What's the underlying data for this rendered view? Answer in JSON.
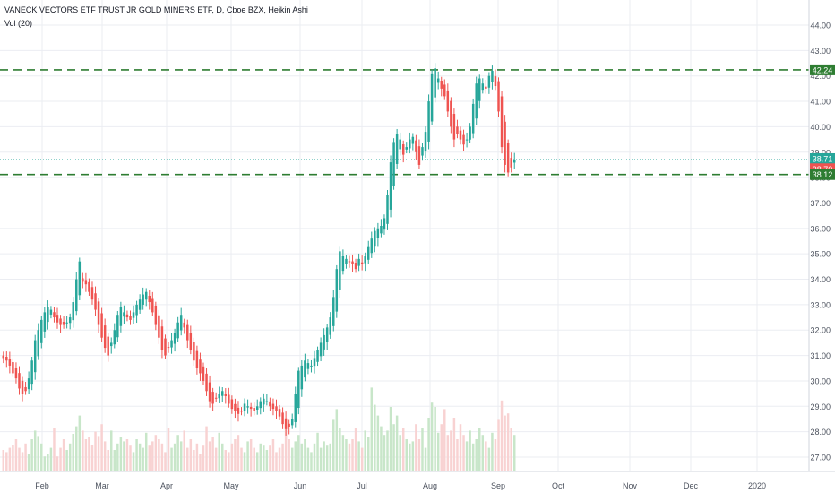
{
  "header": {
    "title": "VANECK VECTORS ETF TRUST JR GOLD MINERS ETF, D, Cboe BZX, Heikin Ashi",
    "volume_label": "Vol (20)"
  },
  "colors": {
    "up": "#26a69a",
    "down": "#ef5350",
    "vol_up": "#c8e6c9",
    "vol_down": "#f8d2d2",
    "level_line": "#2e7d32",
    "last_price_line": "#26a69a",
    "grid": "#ebedf2",
    "axis_text": "#4c525e"
  },
  "chart_data": {
    "type": "candlestick",
    "chart_style": "Heikin Ashi",
    "y_axis": {
      "position": "right",
      "ylim": [
        26.5,
        44.5
      ],
      "ticks": [
        "27.00",
        "28.00",
        "29.00",
        "30.00",
        "31.00",
        "32.00",
        "33.00",
        "34.00",
        "35.00",
        "36.00",
        "37.00",
        "38.00",
        "39.00",
        "40.00",
        "41.00",
        "42.00",
        "43.00",
        "44.00"
      ]
    },
    "x_axis": {
      "ticks": [
        "Feb",
        "Mar",
        "Apr",
        "May",
        "Jun",
        "Jul",
        "Aug",
        "Sep",
        "Oct",
        "Nov",
        "Dec",
        "2020"
      ]
    },
    "price_labels": [
      {
        "value": 42.24,
        "text": "42.24",
        "kind": "level"
      },
      {
        "value": 38.71,
        "text": "38.71",
        "kind": "last-up"
      },
      {
        "value": 38.7,
        "text": "38.70",
        "kind": "last-down"
      },
      {
        "value": 38.12,
        "text": "38.12",
        "kind": "level"
      }
    ],
    "horizontal_levels": [
      42.24,
      38.12
    ],
    "last_price": 38.71,
    "grid": true,
    "candles_close": [
      30.9,
      30.8,
      30.6,
      30.3,
      30.1,
      29.7,
      29.5,
      29.6,
      30.1,
      30.8,
      31.6,
      32.0,
      32.4,
      32.7,
      32.9,
      32.8,
      32.5,
      32.3,
      32.2,
      32.2,
      32.3,
      32.5,
      33.1,
      34.0,
      34.7,
      33.9,
      33.8,
      33.5,
      33.2,
      32.8,
      32.2,
      31.7,
      31.3,
      31.0,
      31.5,
      32.0,
      32.6,
      32.9,
      32.7,
      32.5,
      32.4,
      32.7,
      33.0,
      33.2,
      33.4,
      33.5,
      33.1,
      32.7,
      32.2,
      31.7,
      31.2,
      31.0,
      31.3,
      31.6,
      31.9,
      32.3,
      32.6,
      32.1,
      31.6,
      31.2,
      30.8,
      30.5,
      30.3,
      30.0,
      29.6,
      29.2,
      29.1,
      29.3,
      29.5,
      29.6,
      29.4,
      29.1,
      28.9,
      28.8,
      28.7,
      28.8,
      29.1,
      29.0,
      28.9,
      28.8,
      29.0,
      29.2,
      29.3,
      29.2,
      29.0,
      28.9,
      28.8,
      28.6,
      28.3,
      28.1,
      28.2,
      28.5,
      29.5,
      30.4,
      30.6,
      30.8,
      30.7,
      30.6,
      30.9,
      31.2,
      31.5,
      31.8,
      32.1,
      32.5,
      33.3,
      34.4,
      35.1,
      34.9,
      34.8,
      34.7,
      34.6,
      34.4,
      34.8,
      34.6,
      34.9,
      35.3,
      35.6,
      35.9,
      36.0,
      36.1,
      36.4,
      37.3,
      38.6,
      39.4,
      39.7,
      39.5,
      38.9,
      39.2,
      39.5,
      39.6,
      39.0,
      38.5,
      39.2,
      39.8,
      41.0,
      42.1,
      42.3,
      41.9,
      41.5,
      41.2,
      40.6,
      40.0,
      39.5,
      39.7,
      39.5,
      39.3,
      39.5,
      40.0,
      40.9,
      41.7,
      41.9,
      41.7,
      41.5,
      42.0,
      42.2,
      41.6,
      40.6,
      39.2,
      38.5,
      38.2,
      38.4,
      38.7
    ],
    "volume_relative": [
      0.2,
      0.18,
      0.22,
      0.25,
      0.3,
      0.22,
      0.18,
      0.26,
      0.16,
      0.3,
      0.38,
      0.33,
      0.26,
      0.14,
      0.16,
      0.22,
      0.4,
      0.14,
      0.22,
      0.3,
      0.2,
      0.26,
      0.35,
      0.42,
      0.52,
      0.38,
      0.3,
      0.32,
      0.25,
      0.37,
      0.33,
      0.44,
      0.28,
      0.2,
      0.38,
      0.2,
      0.26,
      0.32,
      0.28,
      0.3,
      0.24,
      0.18,
      0.3,
      0.26,
      0.22,
      0.36,
      0.24,
      0.28,
      0.34,
      0.3,
      0.26,
      0.18,
      0.4,
      0.22,
      0.26,
      0.34,
      0.28,
      0.38,
      0.22,
      0.3,
      0.2,
      0.26,
      0.16,
      0.24,
      0.42,
      0.28,
      0.32,
      0.22,
      0.36,
      0.26,
      0.2,
      0.18,
      0.26,
      0.3,
      0.34,
      0.22,
      0.18,
      0.28,
      0.3,
      0.22,
      0.18,
      0.26,
      0.24,
      0.2,
      0.24,
      0.3,
      0.18,
      0.22,
      0.26,
      0.44,
      0.3,
      0.22,
      0.28,
      0.34,
      0.26,
      0.3,
      0.22,
      0.18,
      0.26,
      0.36,
      0.22,
      0.28,
      0.24,
      0.26,
      0.48,
      0.58,
      0.4,
      0.34,
      0.3,
      0.26,
      0.3,
      0.4,
      0.28,
      0.22,
      0.38,
      0.32,
      0.78,
      0.62,
      0.52,
      0.42,
      0.34,
      0.38,
      0.6,
      0.44,
      0.52,
      0.34,
      0.4,
      0.3,
      0.26,
      0.28,
      0.44,
      0.3,
      0.4,
      0.22,
      0.5,
      0.64,
      0.6,
      0.36,
      0.44,
      0.58,
      0.34,
      0.38,
      0.5,
      0.3,
      0.44,
      0.34,
      0.28,
      0.38,
      0.26,
      0.3,
      0.4,
      0.34,
      0.28,
      0.22,
      0.36,
      0.3,
      0.48,
      0.66,
      0.52,
      0.54,
      0.4,
      0.34
    ]
  }
}
